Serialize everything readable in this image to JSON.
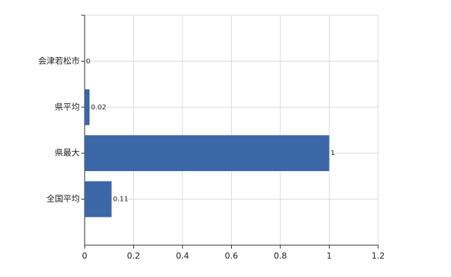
{
  "chart_data": {
    "type": "hbar",
    "categories": [
      "会津若松市",
      "県平均",
      "県最大",
      "全国平均"
    ],
    "values": [
      0,
      0.02,
      1,
      0.11
    ],
    "color": "#3b67a6",
    "xlim": [
      0,
      1.2
    ],
    "xticks": [
      0,
      0.2,
      0.4,
      0.6,
      0.8,
      1,
      1.2
    ],
    "grid": true
  }
}
